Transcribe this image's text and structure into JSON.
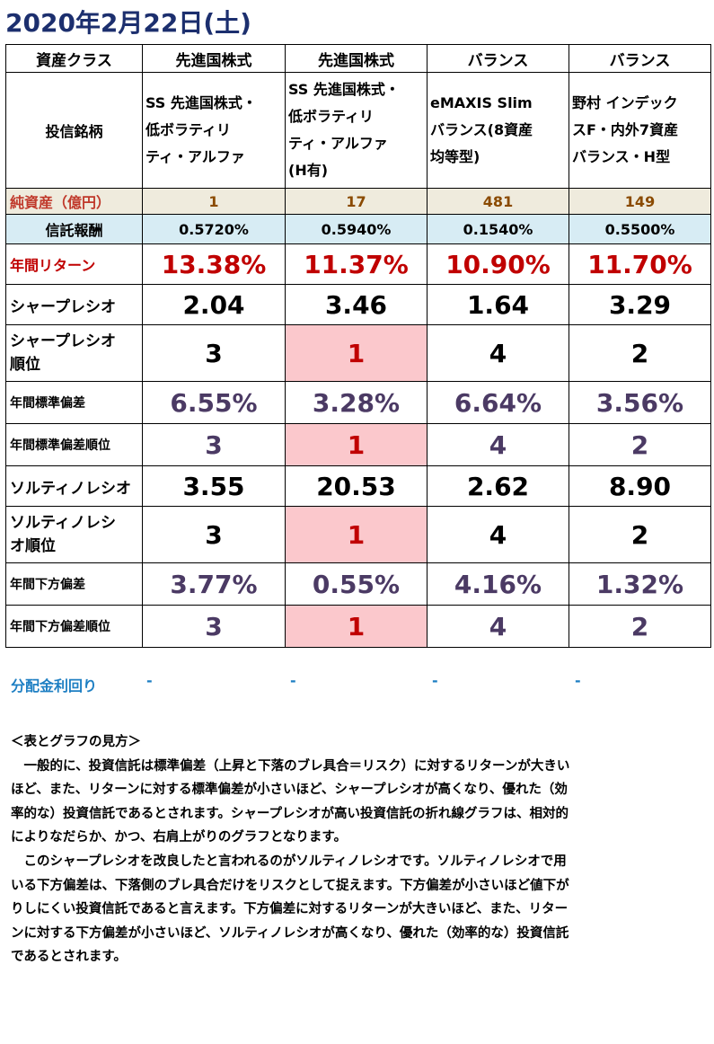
{
  "title": "2020年2月22日(土)",
  "table": {
    "asset_class_label": "資産クラス",
    "asset_classes": [
      "先進国株式",
      "先進国株式",
      "バランス",
      "バランス"
    ],
    "fund_label": "投信銘柄",
    "funds": [
      [
        "SS 先進国株式・",
        "低ボラティリ",
        "ティ・アルファ"
      ],
      [
        "SS 先進国株式・",
        "低ボラティリ",
        "ティ・アルファ",
        "(H有)"
      ],
      [
        "eMAXIS Slim",
        "バランス(8資産",
        "均等型)"
      ],
      [
        "野村 インデック",
        "スF・内外7資産",
        "バランス・H型"
      ]
    ],
    "net_assets_label": "純資産（億円）",
    "net_assets": [
      "1",
      "17",
      "481",
      "149"
    ],
    "fee_label": "信託報酬",
    "fees": [
      "0.5720%",
      "0.5940%",
      "0.1540%",
      "0.5500%"
    ],
    "return_label": "年間リターン",
    "returns": [
      "13.38%",
      "11.37%",
      "10.90%",
      "11.70%"
    ],
    "sharpe_label": "シャープレシオ",
    "sharpe": [
      "2.04",
      "3.46",
      "1.64",
      "3.29"
    ],
    "sharpe_rank_label": [
      "シャープレシオ",
      "順位"
    ],
    "sharpe_rank": [
      "3",
      "1",
      "4",
      "2"
    ],
    "std_label": "年間標準偏差",
    "std": [
      "6.55%",
      "3.28%",
      "6.64%",
      "3.56%"
    ],
    "std_rank_label": "年間標準偏差順位",
    "std_rank": [
      "3",
      "1",
      "4",
      "2"
    ],
    "sortino_label": "ソルティノレシオ",
    "sortino": [
      "3.55",
      "20.53",
      "2.62",
      "8.90"
    ],
    "sortino_rank_label": [
      "ソルティノレシ",
      "オ順位"
    ],
    "sortino_rank": [
      "3",
      "1",
      "4",
      "2"
    ],
    "downside_label": "年間下方偏差",
    "downside": [
      "3.77%",
      "0.55%",
      "4.16%",
      "1.32%"
    ],
    "downside_rank_label": "年間下方偏差順位",
    "downside_rank": [
      "3",
      "1",
      "4",
      "2"
    ]
  },
  "dividend_label": "分配金利回り",
  "dividend_values": [
    "-",
    "-",
    "-",
    "-"
  ],
  "notes": {
    "heading": "＜表とグラフの見方＞",
    "lines": [
      "　一般的に、投資信託は標準偏差（上昇と下落のブレ具合＝リスク）に対するリターンが大きい",
      "ほど、また、リターンに対する標準偏差が小さいほど、シャープレシオが高くなり、優れた（効",
      "率的な）投資信託であるとされます。シャープレシオが高い投資信託の折れ線グラフは、相対的",
      "によりなだらか、かつ、右肩上がりのグラフとなります。",
      "　このシャープレシオを改良したと言われるのがソルティノレシオです。ソルティノレシオで用",
      "いる下方偏差は、下落側のブレ具合だけをリスクとして捉えます。下方偏差が小さいほど値下が",
      "りしにくい投資信託であると言えます。下方偏差に対するリターンが大きいほど、また、リター",
      "ンに対する下方偏差が小さいほど、ソルティノレシオが高くなり、優れた（効率的な）投資信託",
      "であるとされます。"
    ]
  }
}
